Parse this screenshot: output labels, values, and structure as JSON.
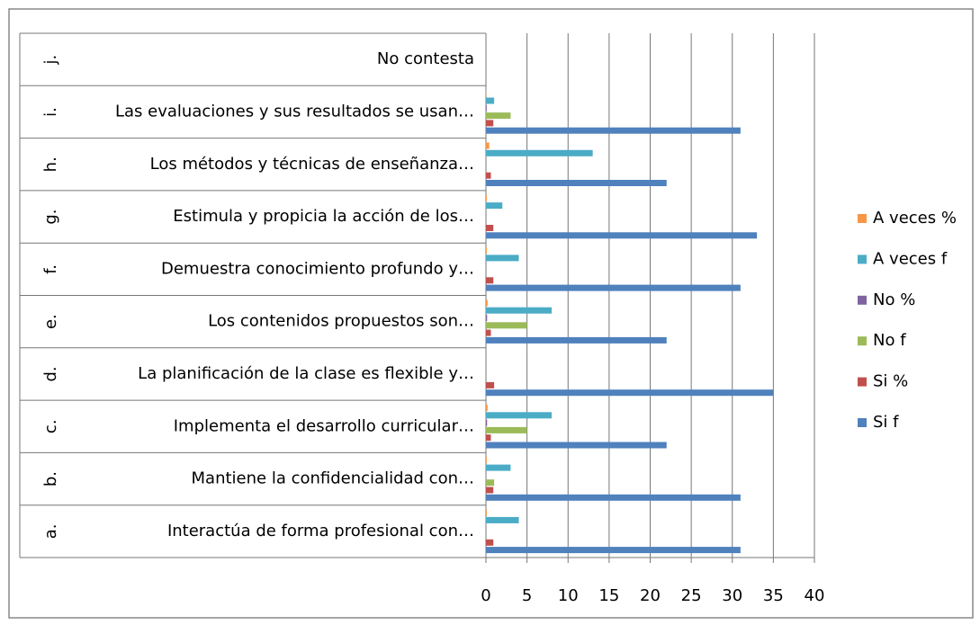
{
  "chart_data": {
    "type": "hbar",
    "category_letters": [
      "a.",
      "b.",
      "c.",
      "d.",
      "e.",
      "f.",
      "g.",
      "h.",
      "i.",
      "j."
    ],
    "categories": [
      "Interactúa de forma profesional con…",
      "Mantiene la confidencialidad con…",
      "Implementa el desarrollo curricular…",
      "La planificación de la clase es flexible y…",
      "Los contenidos propuestos son…",
      "Demuestra conocimiento profundo y…",
      "Estimula y propicia la acción de los…",
      "Los métodos y técnicas de enseñanza…",
      "Las evaluaciones y sus resultados se usan…",
      "No contesta"
    ],
    "series": [
      {
        "name": "A veces %",
        "color": "#f79646",
        "values": [
          0.1,
          0.1,
          0.2,
          0,
          0.2,
          0.1,
          0.1,
          0.4,
          0.03,
          0
        ]
      },
      {
        "name": "A veces f",
        "color": "#4bacc6",
        "values": [
          4,
          3,
          8,
          0,
          8,
          4,
          2,
          13,
          1,
          0
        ]
      },
      {
        "name": "No %",
        "color": "#8064a2",
        "values": [
          0,
          0.03,
          0.14,
          0,
          0.14,
          0,
          0,
          0,
          0.09,
          0
        ]
      },
      {
        "name": "No f",
        "color": "#9bbb59",
        "values": [
          0,
          1,
          5,
          0,
          5,
          0,
          0,
          0,
          3,
          0
        ]
      },
      {
        "name": "Si %",
        "color": "#c0504d",
        "values": [
          0.9,
          0.9,
          0.6,
          1,
          0.6,
          0.9,
          0.9,
          0.6,
          0.9,
          0
        ]
      },
      {
        "name": "Si f",
        "color": "#4f81bd",
        "values": [
          31,
          31,
          22,
          35,
          22,
          31,
          33,
          22,
          31,
          0
        ]
      }
    ],
    "xlim": [
      0,
      40
    ],
    "xticks": [
      0,
      5,
      10,
      15,
      20,
      25,
      30,
      35,
      40
    ],
    "grid": true,
    "legend": "right"
  }
}
